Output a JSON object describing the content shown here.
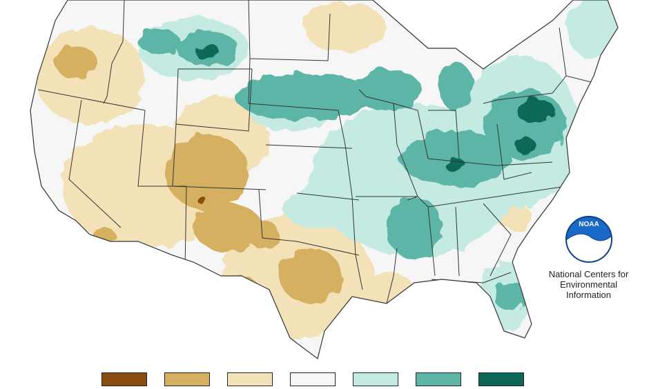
{
  "map": {
    "region": "Contiguous United States",
    "colors": {
      "much_drier": "#8a4d10",
      "drier": "#d4b060",
      "slightly_drier": "#f3e2b8",
      "near_normal": "#f6f6f6",
      "slightly_wetter": "#c4eae2",
      "wetter": "#5cb5a6",
      "much_wetter": "#0c6758"
    },
    "boundary_color": "#333333"
  },
  "logo": {
    "badge_text": "NOAA",
    "caption_lines": [
      "National Centers for",
      "Environmental",
      "Information"
    ]
  },
  "legend": {
    "swatch_colors": [
      "#8a4d10",
      "#d4b060",
      "#f3e2b8",
      "#f6f6f6",
      "#c4eae2",
      "#5cb5a6",
      "#0c6758"
    ]
  }
}
